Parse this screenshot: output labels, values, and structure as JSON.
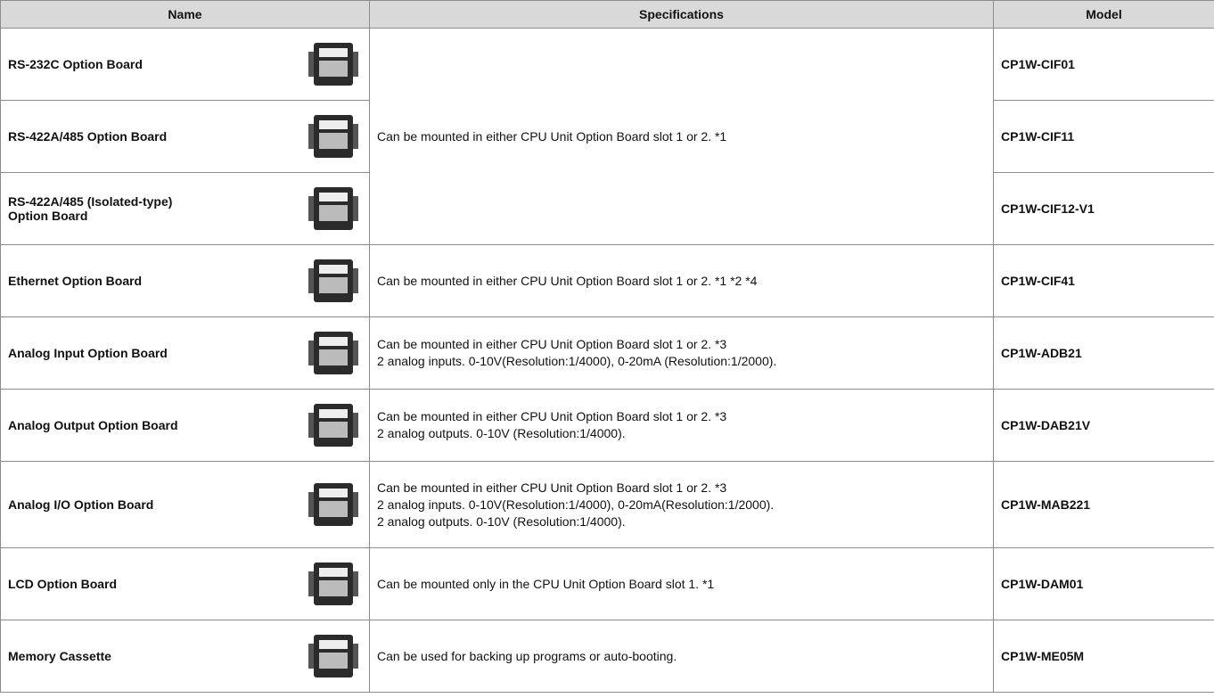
{
  "table": {
    "header": [
      "Name",
      "Specifications",
      "Model"
    ],
    "rows": [
      {
        "name": [
          "RS-232C Option Board"
        ],
        "specifications": [
          "Can be mounted in either CPU Unit Option Board slot 1 or 2. *1"
        ],
        "model": "CP1W-CIF01"
      },
      {
        "name": [
          "RS-422A/485 Option Board"
        ],
        "model": "CP1W-CIF11"
      },
      {
        "name": [
          "RS-422A/485 (Isolated-type)",
          "Option Board"
        ],
        "model": "CP1W-CIF12-V1"
      },
      {
        "name": [
          "Ethernet Option Board"
        ],
        "specifications": [
          "Can be mounted in either CPU Unit Option Board slot 1 or 2.  *1 *2 *4"
        ],
        "model": "CP1W-CIF41"
      },
      {
        "name": [
          "Analog Input Option Board"
        ],
        "specifications": [
          "Can be mounted in either CPU Unit Option Board slot 1 or 2. *3",
          "2 analog inputs. 0-10V(Resolution:1/4000), 0-20mA (Resolution:1/2000)."
        ],
        "model": "CP1W-ADB21"
      },
      {
        "name": [
          "Analog Output Option Board"
        ],
        "specifications": [
          "Can be mounted in either CPU Unit Option Board slot 1 or 2. *3",
          "2 analog outputs. 0-10V (Resolution:1/4000)."
        ],
        "model": "CP1W-DAB21V"
      },
      {
        "name": [
          "Analog I/O Option Board"
        ],
        "specifications": [
          "Can be mounted in either CPU Unit Option Board slot 1 or 2. *3",
          "2 analog inputs. 0-10V(Resolution:1/4000), 0-20mA(Resolution:1/2000).",
          "2 analog outputs. 0-10V (Resolution:1/4000)."
        ],
        "model": "CP1W-MAB221"
      },
      {
        "name": [
          "LCD Option Board"
        ],
        "specifications": [
          "Can be mounted only in the CPU Unit Option Board slot 1. *1"
        ],
        "model": "CP1W-DAM01"
      },
      {
        "name": [
          "Memory Cassette"
        ],
        "specifications": [
          "Can be used for backing up programs or auto-booting."
        ],
        "model": "CP1W-ME05M"
      }
    ]
  }
}
